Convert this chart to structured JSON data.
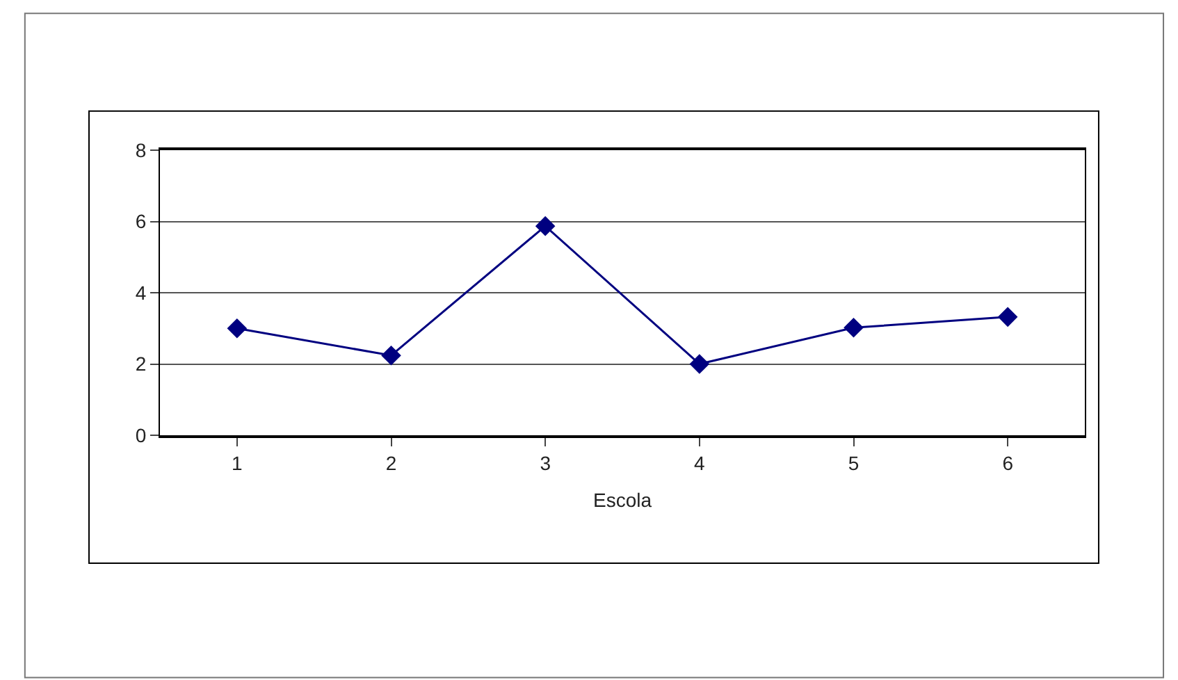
{
  "chart_data": {
    "type": "line",
    "xlabel": "Escola",
    "categories": [
      "1",
      "2",
      "3",
      "4",
      "5",
      "6"
    ],
    "series": [
      {
        "color": "#000080",
        "values": [
          3.0,
          2.24,
          5.87,
          2.0,
          3.02,
          3.32
        ]
      }
    ],
    "ylim": [
      0,
      8
    ],
    "yticks": [
      0,
      2,
      4,
      6,
      8
    ],
    "grid": "y",
    "marker": "diamond",
    "line_style": "solid"
  }
}
